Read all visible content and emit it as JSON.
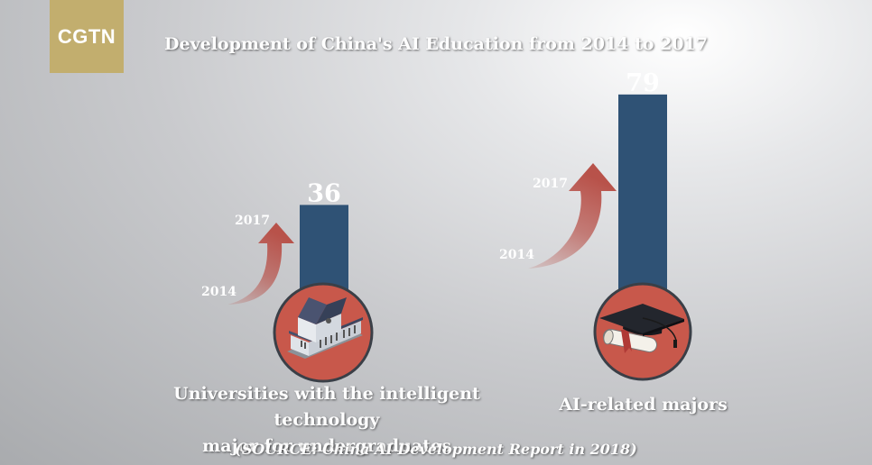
{
  "logo": {
    "text": "CGTN"
  },
  "source": "(SOURCE: China AI Development Report in 2018)",
  "chart_data": {
    "type": "bar",
    "title": "Development of China's AI Education from 2014 to 2017",
    "categories": [
      "Universities with the intelligent technology major for undergraduates",
      "AI-related majors"
    ],
    "category_lines": [
      [
        "Universities with the intelligent technology",
        "major for undergraduates"
      ],
      [
        "AI-related majors"
      ]
    ],
    "values": [
      36,
      79
    ],
    "period": {
      "start": "2014",
      "end": "2017"
    },
    "icons": [
      "university-building-icon",
      "graduation-cap-diploma-icon"
    ],
    "colors": {
      "bar": "#2f5275",
      "circle": "#c8584b",
      "arrow": "#b8524a"
    }
  }
}
